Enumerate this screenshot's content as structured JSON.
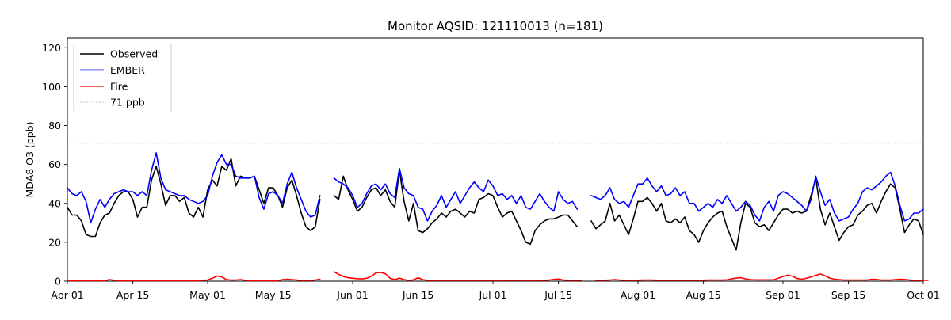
{
  "chart_data": {
    "type": "line",
    "title": "Monitor AQSID: 121110013 (n=181)",
    "xlabel": "",
    "ylabel": "MDA8 O3 (ppb)",
    "ylim": [
      0,
      125
    ],
    "grid": false,
    "legend_position": "upper left",
    "x_start": "Apr 01",
    "x_end": "Oct 01",
    "x_unit": "daily values, day index 0 = Apr 01",
    "y_ticks": [
      0,
      20,
      40,
      60,
      80,
      100,
      120
    ],
    "x_ticks": [
      {
        "day": 0,
        "label": "Apr 01"
      },
      {
        "day": 14,
        "label": "Apr 15"
      },
      {
        "day": 30,
        "label": "May 01"
      },
      {
        "day": 44,
        "label": "May 15"
      },
      {
        "day": 61,
        "label": "Jun 01"
      },
      {
        "day": 75,
        "label": "Jun 15"
      },
      {
        "day": 91,
        "label": "Jul 01"
      },
      {
        "day": 105,
        "label": "Jul 15"
      },
      {
        "day": 122,
        "label": "Aug 01"
      },
      {
        "day": 136,
        "label": "Aug 15"
      },
      {
        "day": 153,
        "label": "Sep 01"
      },
      {
        "day": 167,
        "label": "Sep 15"
      },
      {
        "day": 183,
        "label": "Oct 01"
      }
    ],
    "threshold": {
      "label": "71 ppb",
      "value": 71,
      "color": "#d3d3d3",
      "style": "dotted"
    },
    "legend": [
      {
        "label": "Observed",
        "color": "#000000",
        "style": "solid"
      },
      {
        "label": "EMBER",
        "color": "#0000ff",
        "style": "solid"
      },
      {
        "label": "Fire",
        "color": "#ff0000",
        "style": "solid"
      },
      {
        "label": "71 ppb",
        "color": "#d3d3d3",
        "style": "dotted"
      }
    ],
    "series": [
      {
        "name": "Observed",
        "color": "#000000",
        "values": [
          38,
          34,
          34,
          31,
          24,
          23,
          23,
          30,
          34,
          35,
          40,
          44,
          46,
          46,
          42,
          33,
          38,
          38,
          52,
          59,
          50,
          39,
          44,
          44,
          41,
          43,
          35,
          33,
          38,
          33,
          47,
          52,
          49,
          59,
          57,
          63,
          49,
          54,
          53,
          53,
          54,
          47,
          40,
          48,
          48,
          44,
          38,
          48,
          52,
          44,
          35,
          28,
          26,
          28,
          42,
          null,
          null,
          44,
          42,
          54,
          47,
          42,
          36,
          38,
          43,
          47,
          48,
          44,
          47,
          41,
          38,
          57,
          41,
          31,
          40,
          26,
          25,
          27,
          30,
          32,
          35,
          33,
          36,
          37,
          35,
          33,
          36,
          35,
          42,
          43,
          45,
          44,
          38,
          33,
          35,
          36,
          31,
          26,
          20,
          19,
          26,
          29,
          31,
          32,
          32,
          33,
          34,
          34,
          31,
          28,
          null,
          null,
          31,
          27,
          29,
          31,
          40,
          31,
          34,
          29,
          24,
          32,
          41,
          41,
          43,
          40,
          36,
          40,
          31,
          30,
          32,
          30,
          33,
          26,
          24,
          20,
          26,
          30,
          33,
          35,
          36,
          28,
          22,
          16,
          30,
          40,
          38,
          30,
          28,
          29,
          26,
          30,
          34,
          37,
          37,
          35,
          36,
          35,
          36,
          44,
          53,
          37,
          29,
          35,
          28,
          21,
          25,
          28,
          29,
          34,
          36,
          39,
          40,
          35,
          41,
          46,
          50,
          48,
          37,
          25,
          29,
          32,
          31,
          24
        ]
      },
      {
        "name": "EMBER",
        "color": "#0000ff",
        "values": [
          48,
          45,
          44,
          46,
          41,
          30,
          37,
          42,
          38,
          42,
          45,
          46,
          47,
          46,
          46,
          44,
          46,
          44,
          57,
          66,
          53,
          47,
          46,
          45,
          44,
          44,
          42,
          41,
          40,
          41,
          44,
          54,
          61,
          65,
          60,
          60,
          54,
          53,
          53,
          53,
          54,
          43,
          37,
          45,
          46,
          44,
          40,
          50,
          56,
          48,
          42,
          36,
          33,
          34,
          44,
          null,
          null,
          53,
          51,
          50,
          48,
          44,
          38,
          40,
          45,
          49,
          50,
          47,
          50,
          45,
          43,
          58,
          48,
          45,
          44,
          38,
          37,
          31,
          36,
          39,
          44,
          38,
          42,
          46,
          40,
          44,
          48,
          51,
          48,
          46,
          52,
          49,
          44,
          45,
          42,
          44,
          40,
          44,
          38,
          37,
          41,
          45,
          41,
          38,
          36,
          46,
          42,
          40,
          41,
          37,
          null,
          null,
          44,
          43,
          42,
          44,
          48,
          42,
          40,
          41,
          38,
          44,
          50,
          50,
          53,
          49,
          46,
          49,
          44,
          45,
          48,
          44,
          46,
          40,
          40,
          36,
          38,
          40,
          38,
          42,
          40,
          44,
          40,
          36,
          38,
          41,
          39,
          34,
          31,
          38,
          41,
          36,
          44,
          46,
          45,
          43,
          41,
          39,
          36,
          42,
          54,
          46,
          39,
          42,
          35,
          31,
          32,
          33,
          37,
          40,
          46,
          48,
          47,
          49,
          51,
          54,
          56,
          49,
          39,
          31,
          32,
          35,
          35,
          37
        ]
      },
      {
        "name": "Fire",
        "color": "#ff0000",
        "values": [
          0.3,
          0.3,
          0.3,
          0.3,
          0.3,
          0.3,
          0.3,
          0.3,
          0.3,
          0.8,
          0.5,
          0.3,
          0.3,
          0.3,
          0.3,
          0.3,
          0.3,
          0.3,
          0.3,
          0.3,
          0.3,
          0.3,
          0.3,
          0.3,
          0.3,
          0.3,
          0.3,
          0.3,
          0.3,
          0.5,
          0.6,
          1.5,
          2.6,
          2.2,
          0.8,
          0.6,
          0.6,
          0.8,
          0.5,
          0.3,
          0.3,
          0.3,
          0.3,
          0.3,
          0.3,
          0.3,
          0.8,
          1.0,
          0.8,
          0.6,
          0.4,
          0.4,
          0.4,
          0.6,
          1.0,
          null,
          null,
          4.9,
          3.5,
          2.4,
          1.8,
          1.5,
          1.3,
          1.2,
          1.5,
          2.5,
          4.3,
          4.5,
          3.8,
          1.5,
          0.8,
          1.6,
          0.8,
          0.4,
          0.7,
          1.8,
          0.8,
          0.4,
          0.4,
          0.4,
          0.4,
          0.4,
          0.4,
          0.4,
          0.4,
          0.4,
          0.4,
          0.4,
          0.4,
          0.4,
          0.4,
          0.4,
          0.4,
          0.4,
          0.4,
          0.5,
          0.5,
          0.4,
          0.4,
          0.4,
          0.4,
          0.5,
          0.5,
          0.6,
          0.9,
          1.1,
          0.6,
          0.5,
          0.5,
          0.5,
          0.5,
          null,
          null,
          0.5,
          0.5,
          0.5,
          0.6,
          0.8,
          0.6,
          0.5,
          0.5,
          0.5,
          0.5,
          0.6,
          0.6,
          0.6,
          0.5,
          0.5,
          0.5,
          0.5,
          0.5,
          0.5,
          0.5,
          0.5,
          0.5,
          0.5,
          0.5,
          0.6,
          0.6,
          0.6,
          0.6,
          0.7,
          1.2,
          1.6,
          1.8,
          1.2,
          0.8,
          0.7,
          0.7,
          0.7,
          0.7,
          0.7,
          1.5,
          2.4,
          3.1,
          2.6,
          1.4,
          1.0,
          1.5,
          2.2,
          3.0,
          3.7,
          2.8,
          1.6,
          1.0,
          0.8,
          0.6,
          0.6,
          0.6,
          0.6,
          0.6,
          0.6,
          1.0,
          0.9,
          0.6,
          0.6,
          0.6,
          0.8,
          1.0,
          0.9,
          0.6,
          0.4,
          0.4,
          0.4,
          0.4
        ]
      }
    ]
  }
}
